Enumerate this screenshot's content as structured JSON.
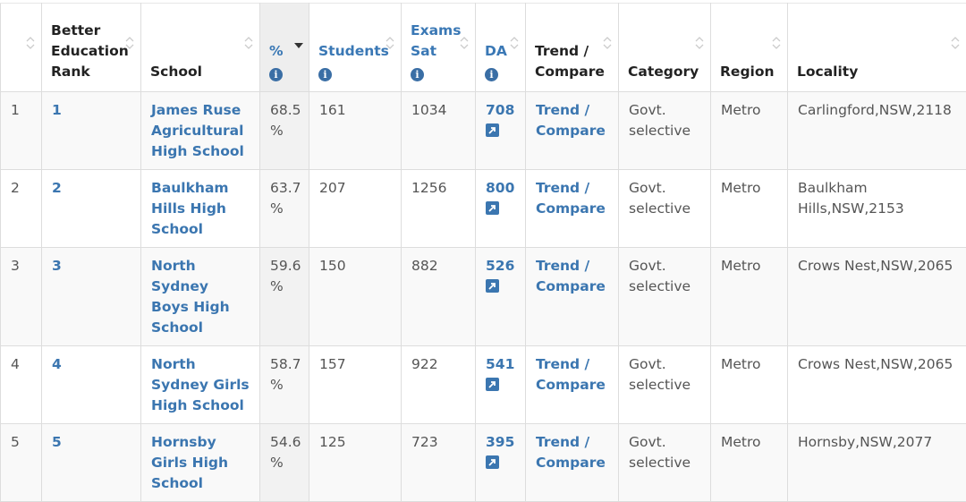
{
  "header": {
    "col_index": "",
    "rank": "Better Education Rank",
    "school": "School",
    "pct": "%",
    "students": "Students",
    "exams_sat": "Exams Sat",
    "da": "DA",
    "trend_compare": "Trend / Compare",
    "category": "Category",
    "region": "Region",
    "locality": "Locality"
  },
  "icons": {
    "info": "info-icon",
    "external": "external-link-icon",
    "sort": "sort-icon",
    "sort_desc": "sort-descending-icon"
  },
  "colors": {
    "link": "#3b76b0",
    "header_link": "#3a78b5",
    "info_icon": "#3a6ea5",
    "sorted_column_bg": "#eeeeee"
  },
  "rows": [
    {
      "index": "1",
      "rank": "1",
      "school": "James Ruse Agricultural High School",
      "pct": "68.5 %",
      "students": "161",
      "exams_sat": "1034",
      "da": "708",
      "trend": "Trend / Compare",
      "category": "Govt. selective",
      "region": "Metro",
      "locality": "Carlingford,NSW,2118"
    },
    {
      "index": "2",
      "rank": "2",
      "school": "Baulkham Hills High School",
      "pct": "63.7 %",
      "students": "207",
      "exams_sat": "1256",
      "da": "800",
      "trend": "Trend / Compare",
      "category": "Govt. selective",
      "region": "Metro",
      "locality": "Baulkham Hills,NSW,2153"
    },
    {
      "index": "3",
      "rank": "3",
      "school": "North Sydney Boys High School",
      "pct": "59.6 %",
      "students": "150",
      "exams_sat": "882",
      "da": "526",
      "trend": "Trend / Compare",
      "category": "Govt. selective",
      "region": "Metro",
      "locality": "Crows Nest,NSW,2065"
    },
    {
      "index": "4",
      "rank": "4",
      "school": "North Sydney Girls High School",
      "pct": "58.7 %",
      "students": "157",
      "exams_sat": "922",
      "da": "541",
      "trend": "Trend / Compare",
      "category": "Govt. selective",
      "region": "Metro",
      "locality": "Crows Nest,NSW,2065"
    },
    {
      "index": "5",
      "rank": "5",
      "school": "Hornsby Girls High School",
      "pct": "54.6 %",
      "students": "125",
      "exams_sat": "723",
      "da": "395",
      "trend": "Trend / Compare",
      "category": "Govt. selective",
      "region": "Metro",
      "locality": "Hornsby,NSW,2077"
    }
  ]
}
